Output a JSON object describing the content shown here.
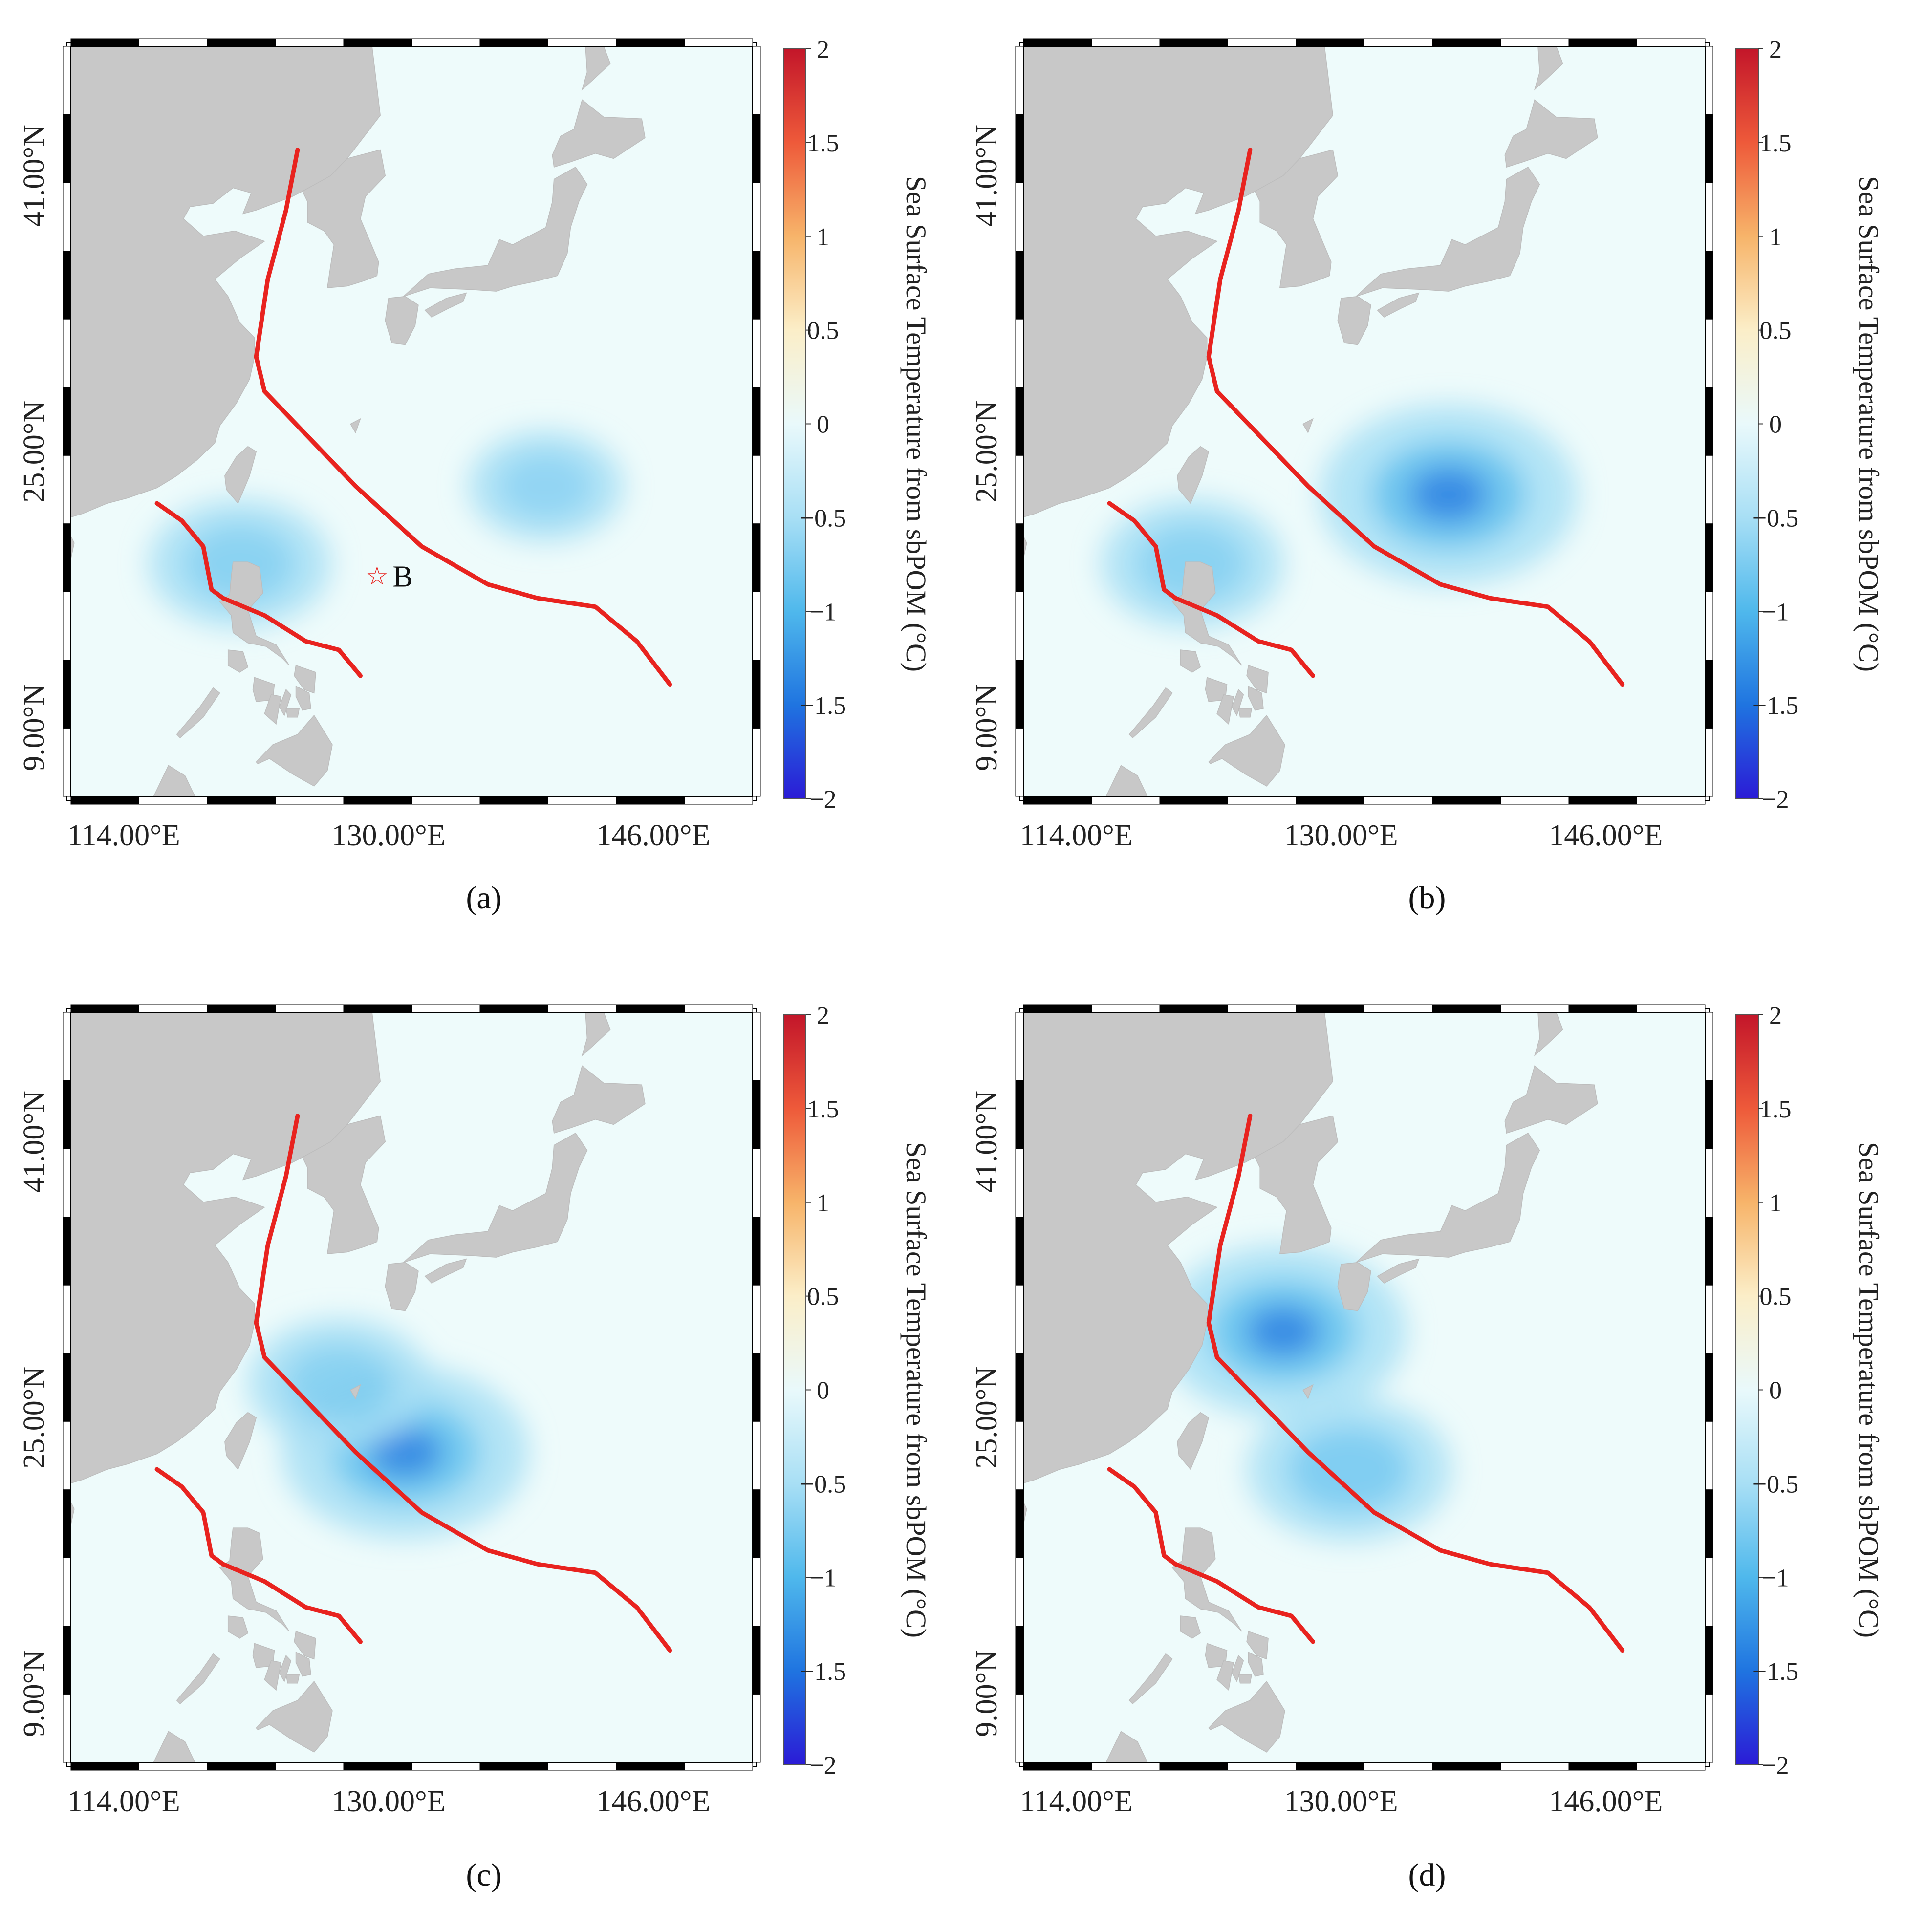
{
  "colors": {
    "land": "#c8c8c8",
    "ocean": "#eefbfb",
    "track": "#e8231f",
    "cold_weak": "#a8dff5",
    "cold_mid": "#4fb8ec",
    "cold_strong": "#1f74e0",
    "star": "#e8231f"
  },
  "axes": {
    "lon_ticks": [
      "114.00°E",
      "130.00°E",
      "146.00°E"
    ],
    "lat_ticks": [
      "41.00°N",
      "25.00°N",
      "9.00°N"
    ]
  },
  "colorbar": {
    "title": "Sea Surface Temperature from sbPOM (°C)",
    "ticks": [
      "2",
      "1.5",
      "1",
      "0.5",
      "0",
      "−0.5",
      "−1",
      "−1.5",
      "−2"
    ],
    "range": [
      -2,
      2
    ],
    "colormap": [
      "#2b1bd6",
      "#1f74e0",
      "#4fb8ec",
      "#a8dff5",
      "#e9f9fb",
      "#fbeec8",
      "#f7b46a",
      "#ee5a3a",
      "#c3162a"
    ]
  },
  "panels": [
    {
      "label": "a",
      "label_text": "(a)",
      "marker": {
        "symbol": "☆",
        "text": "B",
        "lon": 129.3,
        "lat": 17.8
      },
      "cooling": [
        {
          "lon": 139.5,
          "lat": 23.0,
          "intensity": -0.45
        },
        {
          "lon": 121.0,
          "lat": 18.5,
          "intensity": -0.7
        }
      ]
    },
    {
      "label": "b",
      "label_text": "(b)",
      "marker": null,
      "cooling": [
        {
          "lon": 136.5,
          "lat": 22.5,
          "intensity": -1.4
        },
        {
          "lon": 121.0,
          "lat": 18.5,
          "intensity": -0.7
        }
      ]
    },
    {
      "label": "c",
      "label_text": "(c)",
      "marker": null,
      "cooling": [
        {
          "lon": 131.0,
          "lat": 23.0,
          "intensity": -1.3
        },
        {
          "lon": 127.0,
          "lat": 27.0,
          "intensity": -0.7
        }
      ]
    },
    {
      "label": "d",
      "label_text": "(d)",
      "marker": null,
      "cooling": [
        {
          "lon": 126.5,
          "lat": 30.0,
          "intensity": -1.3
        },
        {
          "lon": 130.5,
          "lat": 22.0,
          "intensity": -0.9
        }
      ]
    }
  ],
  "tracks": {
    "northern": [
      [
        147.0,
        11.5
      ],
      [
        145.0,
        14.0
      ],
      [
        142.5,
        16.0
      ],
      [
        139.0,
        16.5
      ],
      [
        136.0,
        17.3
      ],
      [
        132.0,
        19.5
      ],
      [
        128.0,
        23.0
      ],
      [
        125.0,
        26.0
      ],
      [
        122.5,
        28.5
      ],
      [
        122.0,
        30.5
      ],
      [
        122.7,
        35.0
      ],
      [
        123.8,
        39.0
      ],
      [
        124.5,
        42.5
      ]
    ],
    "southern": [
      [
        128.3,
        12.0
      ],
      [
        127.0,
        13.5
      ],
      [
        125.0,
        14.0
      ],
      [
        122.5,
        15.5
      ],
      [
        120.0,
        16.5
      ],
      [
        119.3,
        17.0
      ],
      [
        118.8,
        19.5
      ],
      [
        117.5,
        21.0
      ],
      [
        116.0,
        22.0
      ]
    ]
  }
}
